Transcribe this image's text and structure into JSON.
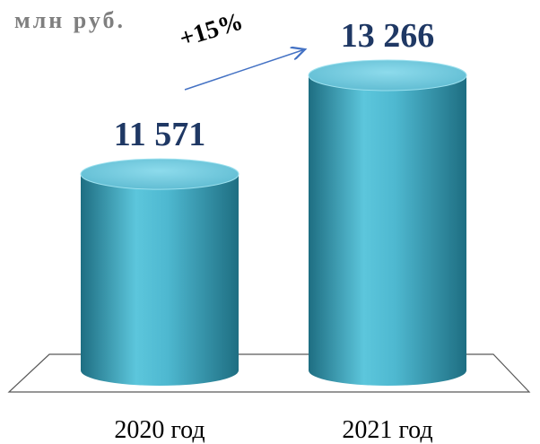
{
  "chart_data": {
    "type": "bar",
    "unit_label": "млн руб.",
    "categories": [
      "2020 год",
      "2021 год"
    ],
    "values": [
      11571,
      13266
    ],
    "value_labels": [
      "11 571",
      "13 266"
    ],
    "annotation": "+15%",
    "ylim": [
      0,
      13266
    ],
    "colors": {
      "bar_light": "#5cc6dc",
      "bar_dark": "#1e6e82",
      "bar_top": "#6fd0e4",
      "value_label": "#1f3864",
      "arrow": "#4472c4",
      "floor_stroke": "#595959"
    }
  }
}
